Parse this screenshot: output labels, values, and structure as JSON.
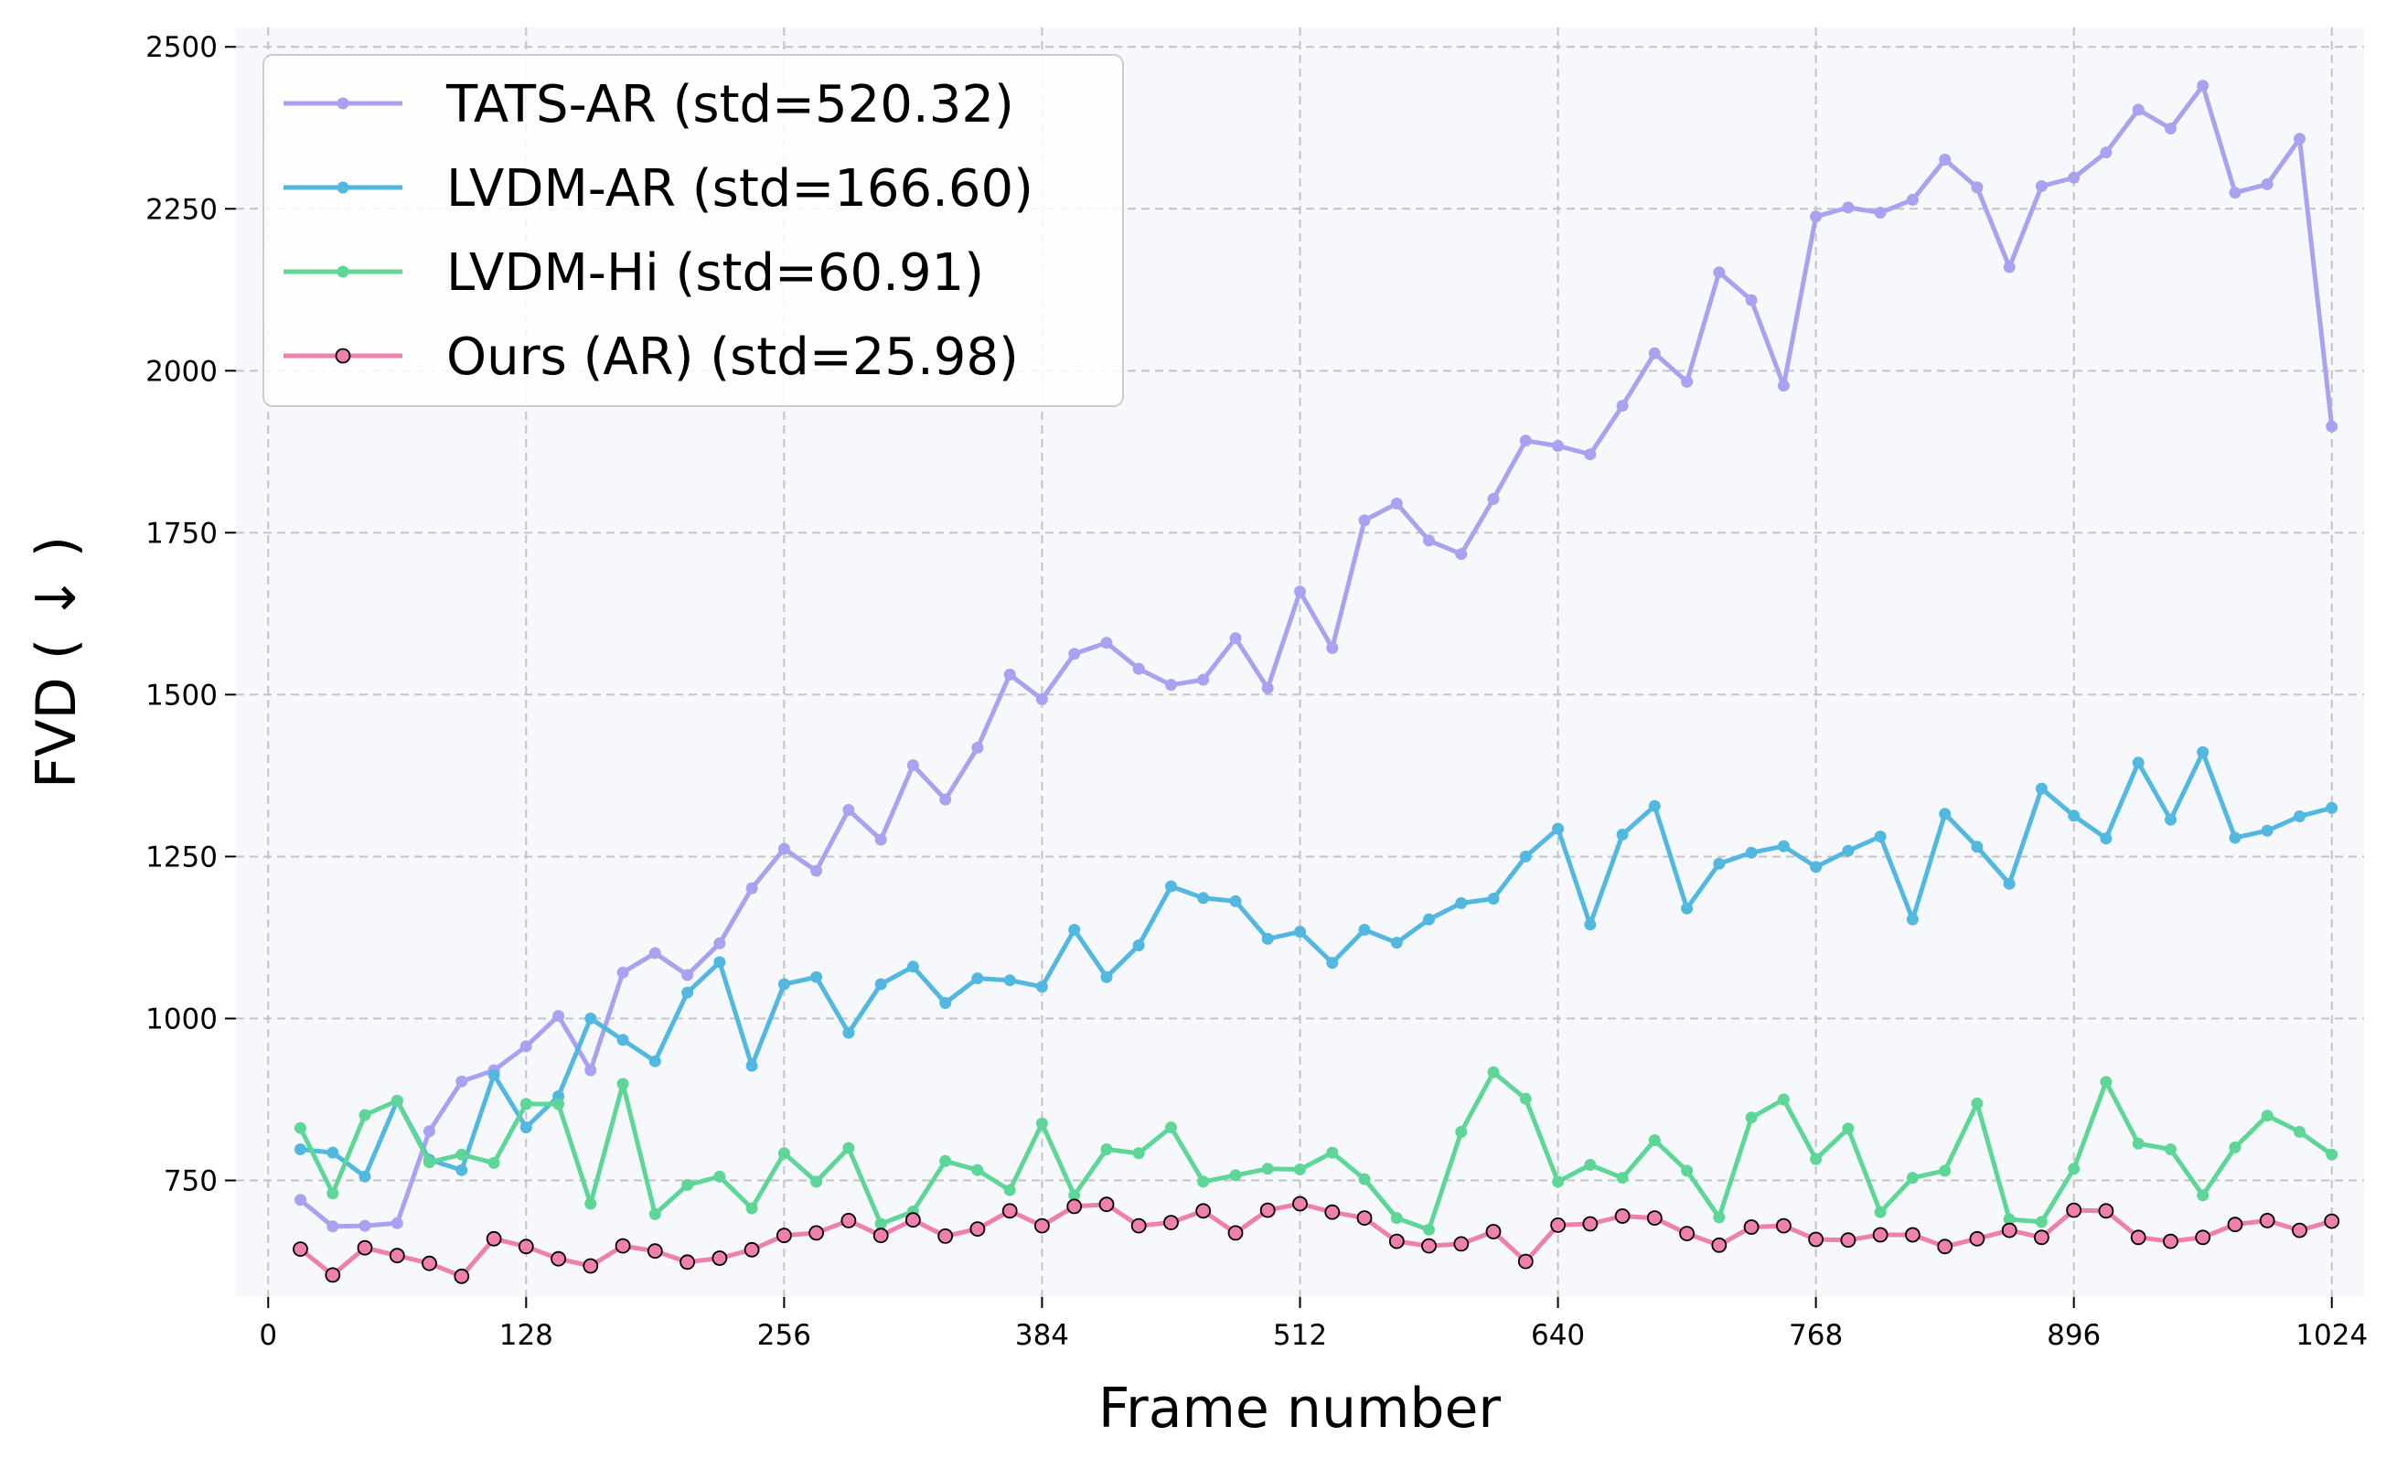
{
  "chart_data": {
    "type": "line",
    "title": "",
    "xlabel": "Frame number",
    "ylabel": "FVD ( ↓ )",
    "xlim": [
      -16,
      1040
    ],
    "ylim": [
      570,
      2530
    ],
    "xticks": [
      0,
      128,
      256,
      384,
      512,
      640,
      768,
      896,
      1024
    ],
    "yticks": [
      750,
      1000,
      1250,
      1500,
      1750,
      2000,
      2250,
      2500
    ],
    "grid": true,
    "legend_position": "top-left",
    "x": [
      16,
      32,
      48,
      64,
      80,
      96,
      112,
      128,
      144,
      160,
      176,
      192,
      208,
      224,
      240,
      256,
      272,
      288,
      304,
      320,
      336,
      352,
      368,
      384,
      400,
      416,
      432,
      448,
      464,
      480,
      496,
      512,
      528,
      544,
      560,
      576,
      592,
      608,
      624,
      640,
      656,
      672,
      688,
      704,
      720,
      736,
      752,
      768,
      784,
      800,
      816,
      832,
      848,
      864,
      880,
      896,
      912,
      928,
      944,
      960,
      976,
      992,
      1008,
      1024
    ],
    "series": [
      {
        "name": "TATS-AR (std=520.32)",
        "color": "#a9a2f0",
        "marker_edge": "#a9a2f0",
        "values": [
          720,
          679,
          680,
          684,
          826,
          903,
          920,
          957,
          1004,
          920,
          1071,
          1101,
          1067,
          1116,
          1201,
          1262,
          1228,
          1322,
          1276,
          1391,
          1338,
          1418,
          1531,
          1493,
          1563,
          1580,
          1540,
          1515,
          1523,
          1587,
          1510,
          1659,
          1572,
          1769,
          1795,
          1738,
          1717,
          1802,
          1892,
          1884,
          1871,
          1946,
          2027,
          1983,
          2152,
          2109,
          1977,
          2238,
          2252,
          2244,
          2264,
          2326,
          2283,
          2160,
          2285,
          2298,
          2337,
          2403,
          2374,
          2440,
          2275,
          2288,
          2358,
          1914
        ]
      },
      {
        "name": "LVDM-AR (std=166.60)",
        "color": "#52b8e0",
        "marker_edge": "#52b8e0",
        "values": [
          798,
          793,
          756,
          873,
          782,
          766,
          913,
          832,
          880,
          1000,
          967,
          934,
          1040,
          1087,
          927,
          1053,
          1064,
          978,
          1053,
          1080,
          1024,
          1062,
          1059,
          1049,
          1137,
          1064,
          1113,
          1204,
          1186,
          1181,
          1123,
          1134,
          1086,
          1137,
          1117,
          1153,
          1178,
          1185,
          1250,
          1293,
          1145,
          1284,
          1328,
          1170,
          1239,
          1256,
          1266,
          1234,
          1259,
          1281,
          1153,
          1316,
          1265,
          1208,
          1355,
          1313,
          1278,
          1395,
          1307,
          1411,
          1279,
          1290,
          1312,
          1325
        ]
      },
      {
        "name": "LVDM-Hi (std=60.91)",
        "color": "#5dd698",
        "marker_edge": "#5dd698",
        "values": [
          831,
          730,
          851,
          873,
          778,
          790,
          777,
          868,
          868,
          714,
          899,
          698,
          743,
          756,
          707,
          792,
          748,
          800,
          683,
          702,
          780,
          766,
          735,
          838,
          727,
          798,
          792,
          832,
          748,
          758,
          768,
          767,
          793,
          752,
          692,
          674,
          825,
          917,
          876,
          748,
          774,
          754,
          812,
          765,
          693,
          847,
          875,
          783,
          830,
          701,
          754,
          765,
          869,
          690,
          686,
          768,
          902,
          807,
          798,
          727,
          801,
          850,
          825,
          790
        ]
      },
      {
        "name": "Ours (AR) (std=25.98)",
        "color": "#ee7fae",
        "marker_edge": "#000000",
        "values": [
          644,
          604,
          646,
          634,
          622,
          602,
          660,
          648,
          629,
          618,
          649,
          641,
          624,
          630,
          643,
          665,
          669,
          688,
          665,
          689,
          664,
          675,
          703,
          680,
          710,
          713,
          680,
          685,
          703,
          669,
          704,
          714,
          701,
          692,
          656,
          649,
          652,
          671,
          625,
          681,
          683,
          695,
          692,
          668,
          650,
          678,
          680,
          659,
          658,
          666,
          666,
          648,
          660,
          673,
          662,
          704,
          703,
          662,
          656,
          662,
          682,
          688,
          673,
          687
        ]
      }
    ]
  }
}
